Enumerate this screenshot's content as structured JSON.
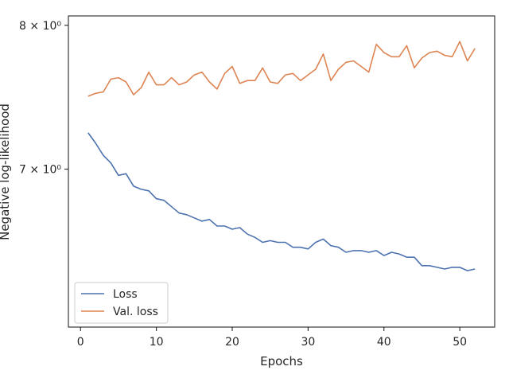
{
  "chart_data": {
    "type": "line",
    "xlabel": "Epochs",
    "ylabel": "Negative log-likelihood",
    "yscale": "log",
    "xlim": [
      -1.6,
      54.6
    ],
    "ylim": [
      6.045,
      8.07
    ],
    "xticks": [
      0,
      10,
      20,
      30,
      40,
      50
    ],
    "xtick_labels": [
      "0",
      "10",
      "20",
      "30",
      "40",
      "50"
    ],
    "yticks": [
      7.0,
      8.0
    ],
    "ytick_labels": [
      "7 × 10⁰",
      "8 × 10⁰"
    ],
    "grid": false,
    "legend": {
      "position": "lower-left"
    },
    "x": [
      1,
      2,
      3,
      4,
      5,
      6,
      7,
      8,
      9,
      10,
      11,
      12,
      13,
      14,
      15,
      16,
      17,
      18,
      19,
      20,
      21,
      22,
      23,
      24,
      25,
      26,
      27,
      28,
      29,
      30,
      31,
      32,
      33,
      34,
      35,
      36,
      37,
      38,
      39,
      40,
      41,
      42,
      43,
      44,
      45,
      46,
      47,
      48,
      49,
      50,
      51,
      52
    ],
    "series": [
      {
        "name": "Loss",
        "color": "#4c72b0",
        "values": [
          7.24,
          7.17,
          7.09,
          7.04,
          6.96,
          6.97,
          6.89,
          6.87,
          6.86,
          6.81,
          6.8,
          6.76,
          6.72,
          6.71,
          6.69,
          6.67,
          6.68,
          6.64,
          6.64,
          6.62,
          6.63,
          6.59,
          6.57,
          6.54,
          6.55,
          6.54,
          6.54,
          6.51,
          6.51,
          6.5,
          6.54,
          6.56,
          6.52,
          6.51,
          6.48,
          6.49,
          6.49,
          6.48,
          6.49,
          6.46,
          6.48,
          6.47,
          6.45,
          6.45,
          6.4,
          6.4,
          6.39,
          6.38,
          6.39,
          6.39,
          6.37,
          6.38
        ]
      },
      {
        "name": "Val. loss",
        "color": "#dd8452",
        "values": [
          7.49,
          7.51,
          7.52,
          7.61,
          7.62,
          7.59,
          7.5,
          7.55,
          7.66,
          7.57,
          7.57,
          7.62,
          7.57,
          7.59,
          7.64,
          7.66,
          7.59,
          7.54,
          7.65,
          7.7,
          7.58,
          7.6,
          7.6,
          7.69,
          7.59,
          7.58,
          7.64,
          7.65,
          7.6,
          7.64,
          7.68,
          7.79,
          7.6,
          7.68,
          7.73,
          7.74,
          7.7,
          7.66,
          7.86,
          7.8,
          7.77,
          7.77,
          7.85,
          7.69,
          7.76,
          7.8,
          7.81,
          7.78,
          7.77,
          7.88,
          7.74,
          7.83
        ]
      }
    ]
  }
}
